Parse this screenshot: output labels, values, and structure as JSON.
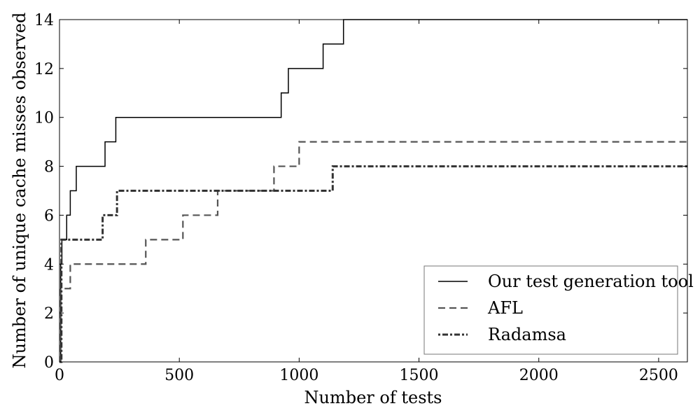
{
  "chart_data": {
    "type": "line",
    "xlabel": "Number of tests",
    "ylabel": "Number of unique cache misses observed",
    "xlim": [
      0,
      2620
    ],
    "ylim": [
      0,
      14
    ],
    "xticks": [
      0,
      500,
      1000,
      1500,
      2000,
      2500
    ],
    "yticks": [
      0,
      2,
      4,
      6,
      8,
      10,
      12,
      14
    ],
    "grid": false,
    "legend_position": "bottom-right",
    "series": [
      {
        "name": "Our test generation tool",
        "style": "solid",
        "color": "#000000",
        "points": [
          [
            0,
            0
          ],
          [
            5,
            4
          ],
          [
            10,
            5
          ],
          [
            30,
            6
          ],
          [
            45,
            7
          ],
          [
            70,
            8
          ],
          [
            190,
            9
          ],
          [
            235,
            10
          ],
          [
            925,
            11
          ],
          [
            955,
            12
          ],
          [
            1100,
            13
          ],
          [
            1185,
            14
          ],
          [
            2620,
            14
          ]
        ]
      },
      {
        "name": "AFL",
        "style": "dashed",
        "color": "#555555",
        "points": [
          [
            0,
            0
          ],
          [
            5,
            3
          ],
          [
            20,
            3
          ],
          [
            45,
            4
          ],
          [
            360,
            5
          ],
          [
            515,
            6
          ],
          [
            660,
            7
          ],
          [
            895,
            8
          ],
          [
            1000,
            9
          ],
          [
            2620,
            9
          ]
        ]
      },
      {
        "name": "Radamsa",
        "style": "dashdot",
        "color": "#333333",
        "points": [
          [
            0,
            0
          ],
          [
            8,
            5
          ],
          [
            180,
            6
          ],
          [
            240,
            7
          ],
          [
            1140,
            8
          ],
          [
            2620,
            8
          ]
        ]
      }
    ]
  }
}
